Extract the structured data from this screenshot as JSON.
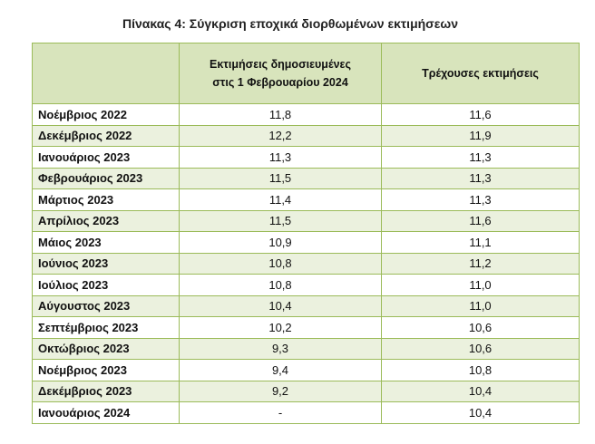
{
  "title": "Πίνακας 4: Σύγκριση εποχικά διορθωμένων εκτιμήσεων",
  "table": {
    "header": [
      "Εκτιμήσεις δημοσιευμένες στις 1 Φεβρουαρίου 2024",
      "Τρέχουσες εκτιμήσεις"
    ],
    "rows": [
      [
        "Νοέμβριος 2022",
        "11,8",
        "11,6"
      ],
      [
        "Δεκέμβριος 2022",
        "12,2",
        "11,9"
      ],
      [
        "Ιανουάριος 2023",
        "11,3",
        "11,3"
      ],
      [
        "Φεβρουάριος 2023",
        "11,5",
        "11,3"
      ],
      [
        "Μάρτιος 2023",
        "11,4",
        "11,3"
      ],
      [
        "Απρίλιος 2023",
        "11,5",
        "11,6"
      ],
      [
        "Μάιος 2023",
        "10,9",
        "11,1"
      ],
      [
        "Ιούνιος 2023",
        "10,8",
        "11,2"
      ],
      [
        "Ιούλιος 2023",
        "10,8",
        "11,0"
      ],
      [
        "Αύγουστος 2023",
        "10,4",
        "11,0"
      ],
      [
        "Σεπτέμβριος 2023",
        "10,2",
        "10,6"
      ],
      [
        "Οκτώβριος 2023",
        "9,3",
        "10,6"
      ],
      [
        "Νοέμβριος 2023",
        "9,4",
        "10,8"
      ],
      [
        "Δεκέμβριος 2023",
        "9,2",
        "10,4"
      ],
      [
        "Ιανουάριος 2024",
        "-",
        "10,4"
      ]
    ]
  }
}
